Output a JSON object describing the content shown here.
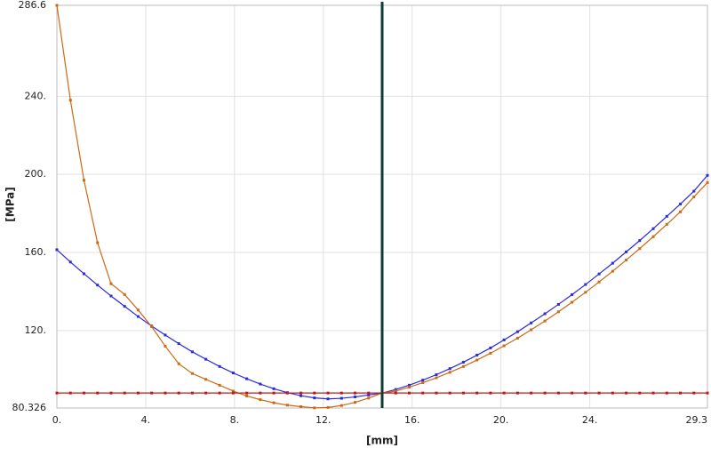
{
  "chart_data": {
    "type": "line",
    "xlabel": "[mm]",
    "ylabel": "[MPa]",
    "x": [
      0,
      0.61,
      1.22,
      1.83,
      2.44,
      3.05,
      3.66,
      4.27,
      4.88,
      5.49,
      6.1,
      6.71,
      7.33,
      7.94,
      8.55,
      9.16,
      9.77,
      10.38,
      10.99,
      11.6,
      12.21,
      12.82,
      13.43,
      14.04,
      14.65,
      15.26,
      15.87,
      16.48,
      17.09,
      17.7,
      18.31,
      18.92,
      19.53,
      20.14,
      20.75,
      21.36,
      21.98,
      22.59,
      23.2,
      23.81,
      24.42,
      25.03,
      25.64,
      26.25,
      26.86,
      27.47,
      28.08,
      28.69,
      29.3
    ],
    "series": [
      {
        "color": "#2a2ae0",
        "values": [
          161.4,
          155.1,
          149.1,
          143.3,
          137.7,
          132.4,
          127.2,
          122.3,
          117.7,
          113.3,
          109.1,
          105.3,
          101.6,
          98.3,
          95.3,
          92.6,
          90.2,
          88.2,
          86.6,
          85.5,
          85.0,
          85.3,
          86.0,
          87.0,
          88.0,
          89.8,
          92.0,
          94.6,
          97.4,
          100.5,
          103.8,
          107.4,
          111.1,
          115.2,
          119.4,
          123.9,
          128.6,
          133.4,
          138.4,
          143.6,
          149.0,
          154.5,
          160.3,
          166.1,
          172.2,
          178.5,
          184.8,
          191.4,
          199.5
        ]
      },
      {
        "color": "#cc6a14",
        "values": [
          286.6,
          238,
          197,
          165,
          144,
          138.5,
          130.5,
          122,
          112,
          103,
          98,
          95,
          92,
          89,
          86.5,
          84.6,
          83.0,
          81.8,
          81.0,
          80.4,
          80.6,
          81.6,
          83.2,
          85.4,
          88.0,
          89.0,
          91.0,
          93.3,
          95.8,
          98.6,
          101.6,
          104.9,
          108.4,
          112.2,
          116.1,
          120.4,
          124.9,
          129.6,
          134.5,
          139.6,
          144.9,
          150.4,
          156.1,
          162.0,
          168.1,
          174.4,
          180.8,
          188.5,
          195.8
        ]
      },
      {
        "color": "#c01818",
        "values": [
          88,
          88,
          88,
          88,
          88,
          88,
          88,
          88,
          88,
          88,
          88,
          88,
          88,
          88,
          88,
          88,
          88,
          88,
          88,
          88,
          88,
          88,
          88,
          88,
          88,
          88,
          88,
          88,
          88,
          88,
          88,
          88,
          88,
          88,
          88,
          88,
          88,
          88,
          88,
          88,
          88,
          88,
          88,
          88,
          88,
          88,
          88,
          88,
          88
        ]
      }
    ],
    "cursor": {
      "x": 14.65,
      "color": "#0f3b36"
    },
    "xlim": [
      0,
      29.3
    ],
    "xticks": [
      {
        "value": 0,
        "label": "0."
      },
      {
        "value": 4,
        "label": "4."
      },
      {
        "value": 8,
        "label": "8."
      },
      {
        "value": 12,
        "label": "12."
      },
      {
        "value": 16,
        "label": "16."
      },
      {
        "value": 20,
        "label": "20."
      },
      {
        "value": 24,
        "label": "24."
      },
      29.3
    ],
    "ylim": [
      80.326,
      286.6
    ],
    "yticks": [
      80.326,
      {
        "value": 120,
        "label": "120."
      },
      {
        "value": 160,
        "label": "160."
      },
      {
        "value": 200,
        "label": "200."
      },
      {
        "value": 240,
        "label": "240."
      },
      286.6
    ],
    "grid": true
  }
}
